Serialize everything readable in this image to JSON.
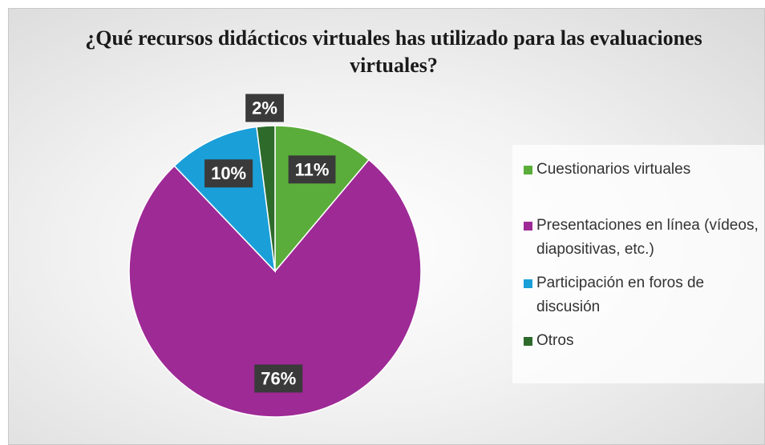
{
  "chart_data": {
    "type": "pie",
    "title": "¿Qué recursos didácticos virtuales has utilizado para las evaluaciones virtuales?",
    "categories": [
      "Cuestionarios virtuales",
      "Presentaciones en línea (vídeos, diapositivas, etc.)",
      "Participación en foros de discusión",
      "Otros"
    ],
    "values": [
      11,
      76,
      10,
      2
    ],
    "value_labels": [
      "11%",
      "76%",
      "10%",
      "2%"
    ],
    "colors": [
      "#5aad3a",
      "#9e2a96",
      "#1a9fd8",
      "#2e6b2b"
    ],
    "legend": "right"
  }
}
